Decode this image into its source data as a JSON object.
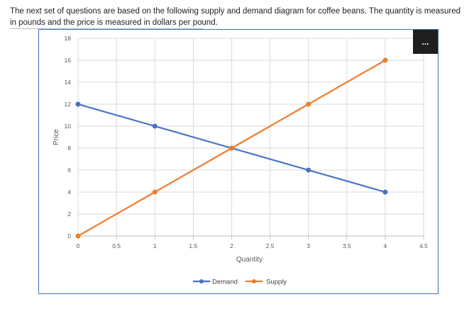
{
  "question": {
    "text": "The next set of questions are based on the following supply and demand diagram for coffee beans. The quantity is measured in pounds and the price is measured in dollars per pound."
  },
  "menu": {
    "label": "...",
    "icon": "more-options-icon"
  },
  "colors": {
    "demand": "#4472c4",
    "supply": "#ed7d31",
    "frame": "#3d73b8",
    "grid": "#d9d9d9"
  },
  "chart_data": {
    "type": "line",
    "title": "",
    "xlabel": "Quantity",
    "ylabel": "Price",
    "xlim": [
      0,
      4.5
    ],
    "ylim": [
      0,
      18
    ],
    "xticks": [
      "0",
      "0.5",
      "1",
      "1.5",
      "2",
      "2.5",
      "3",
      "3.5",
      "4",
      "4.5"
    ],
    "yticks": [
      "0",
      "2",
      "4",
      "6",
      "8",
      "10",
      "12",
      "14",
      "16",
      "18"
    ],
    "grid": true,
    "legend_position": "bottom",
    "series": [
      {
        "name": "Demand",
        "x": [
          0,
          1,
          2,
          3,
          4
        ],
        "y": [
          12,
          10,
          8,
          6,
          4
        ]
      },
      {
        "name": "Supply",
        "x": [
          0,
          1,
          2,
          3,
          4
        ],
        "y": [
          0,
          4,
          8,
          12,
          16
        ]
      }
    ]
  }
}
